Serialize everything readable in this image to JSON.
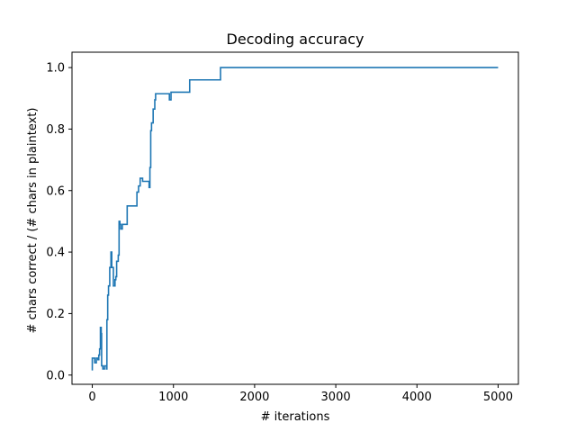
{
  "chart_data": {
    "type": "line",
    "title": "Decoding accuracy",
    "xlabel": "# iterations",
    "ylabel": "# chars correct / (# chars in plaintext)",
    "xlim": [
      -250,
      5250
    ],
    "ylim": [
      -0.03,
      1.05
    ],
    "xticks": [
      0,
      1000,
      2000,
      3000,
      4000,
      5000
    ],
    "xtick_labels": [
      "0",
      "1000",
      "2000",
      "3000",
      "4000",
      "5000"
    ],
    "yticks": [
      0.0,
      0.2,
      0.4,
      0.6,
      0.8,
      1.0
    ],
    "ytick_labels": [
      "0.0",
      "0.2",
      "0.4",
      "0.6",
      "0.8",
      "1.0"
    ],
    "grid": false,
    "series": [
      {
        "color": "#1f77b4",
        "x": [
          0,
          0,
          30,
          30,
          50,
          50,
          70,
          70,
          80,
          80,
          90,
          90,
          100,
          100,
          110,
          110,
          115,
          115,
          130,
          130,
          150,
          150,
          175,
          175,
          180,
          180,
          190,
          190,
          200,
          200,
          215,
          215,
          230,
          230,
          240,
          240,
          260,
          260,
          280,
          280,
          290,
          290,
          300,
          300,
          320,
          320,
          330,
          330,
          340,
          340,
          350,
          350,
          370,
          370,
          400,
          400,
          430,
          430,
          550,
          550,
          570,
          570,
          590,
          590,
          600,
          600,
          620,
          620,
          700,
          700,
          710,
          710,
          720,
          720,
          730,
          730,
          750,
          750,
          770,
          770,
          780,
          780,
          790,
          790,
          800,
          800,
          950,
          950,
          970,
          970,
          1000,
          1000,
          1200,
          1200,
          1580,
          1580,
          5000
        ],
        "y": [
          0.015,
          0.055,
          0.055,
          0.04,
          0.04,
          0.055,
          0.055,
          0.05,
          0.05,
          0.065,
          0.065,
          0.085,
          0.085,
          0.155,
          0.155,
          0.135,
          0.135,
          0.03,
          0.03,
          0.02,
          0.02,
          0.03,
          0.03,
          0.02,
          0.02,
          0.18,
          0.18,
          0.26,
          0.26,
          0.29,
          0.29,
          0.35,
          0.35,
          0.4,
          0.4,
          0.35,
          0.35,
          0.29,
          0.29,
          0.31,
          0.31,
          0.32,
          0.32,
          0.37,
          0.37,
          0.39,
          0.39,
          0.5,
          0.5,
          0.49,
          0.49,
          0.475,
          0.475,
          0.49,
          0.49,
          0.49,
          0.49,
          0.55,
          0.55,
          0.595,
          0.595,
          0.615,
          0.615,
          0.64,
          0.64,
          0.64,
          0.64,
          0.63,
          0.63,
          0.61,
          0.61,
          0.675,
          0.675,
          0.795,
          0.795,
          0.82,
          0.82,
          0.865,
          0.865,
          0.895,
          0.895,
          0.915,
          0.915,
          0.915,
          0.915,
          0.915,
          0.915,
          0.895,
          0.895,
          0.92,
          0.92,
          0.92,
          0.92,
          0.96,
          0.96,
          1.0,
          1.0
        ]
      }
    ]
  }
}
